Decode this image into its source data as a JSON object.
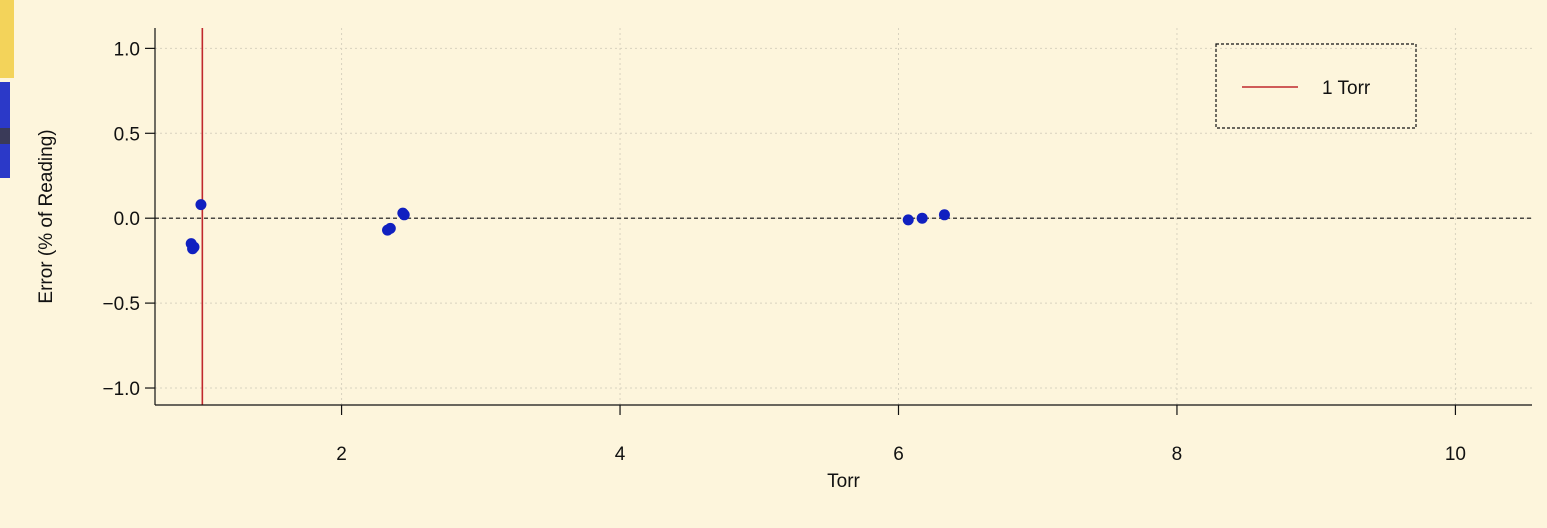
{
  "chart_data": {
    "type": "scatter",
    "title": "",
    "xlabel": "Torr",
    "ylabel": "Error (% of Reading)",
    "xlim": [
      0.66,
      10.55
    ],
    "ylim": [
      -1.1,
      1.12
    ],
    "x_ticks": [
      2,
      4,
      6,
      8,
      10
    ],
    "x_tick_labels": [
      "2",
      "4",
      "6",
      "8",
      "10"
    ],
    "y_ticks": [
      1.0,
      0.5,
      0.0,
      -0.5,
      -1.0
    ],
    "y_tick_labels": [
      "1.0",
      "0.5",
      "0.0",
      "−0.5",
      "−1.0"
    ],
    "grid": true,
    "zero_line": 0.0,
    "reference_line": {
      "x": 1.0,
      "label": "1 Torr",
      "color": "#c0282d"
    },
    "legend": {
      "placement": "top-right",
      "entries": [
        "1 Torr"
      ]
    },
    "points_color": "#1020c0",
    "points": [
      {
        "x": 0.92,
        "y": -0.15
      },
      {
        "x": 0.93,
        "y": -0.18
      },
      {
        "x": 0.94,
        "y": -0.17
      },
      {
        "x": 0.99,
        "y": 0.08
      },
      {
        "x": 2.33,
        "y": -0.07
      },
      {
        "x": 2.35,
        "y": -0.06
      },
      {
        "x": 2.44,
        "y": 0.03
      },
      {
        "x": 2.45,
        "y": 0.02
      },
      {
        "x": 6.07,
        "y": -0.01
      },
      {
        "x": 6.17,
        "y": 0.0
      },
      {
        "x": 6.33,
        "y": 0.02
      }
    ]
  }
}
